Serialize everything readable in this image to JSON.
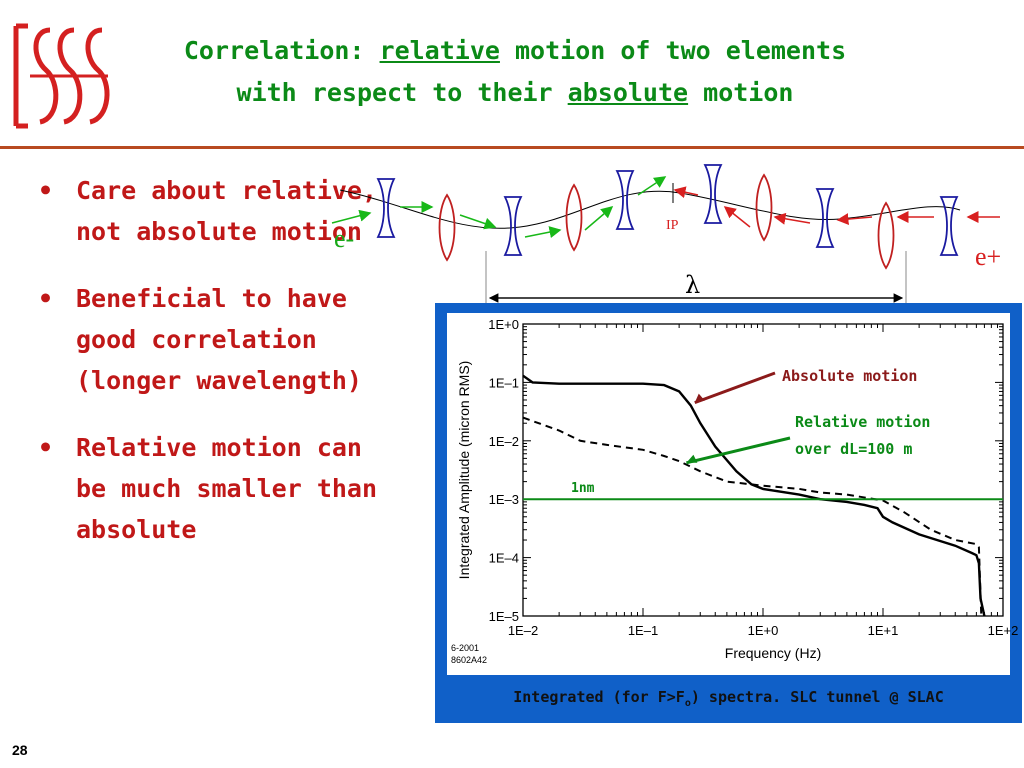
{
  "title": {
    "line1_pre": "Correlation: ",
    "line1_u": "relative",
    "line1_post": " motion of two elements",
    "line2_pre": "with respect to their ",
    "line2_u": "absolute",
    "line2_post": " motion"
  },
  "bullets": [
    "Care about relative, not absolute motion",
    "Beneficial to have good correlation (longer wavelength)",
    "Relative motion can be much smaller than absolute"
  ],
  "bullet_char": "•",
  "diagram": {
    "e_minus": "e-",
    "e_plus": "e+",
    "ip": "IP",
    "lambda": "λ"
  },
  "caption": {
    "pre": "Integrated (for F>F",
    "sub": "o",
    "post": ") spectra. SLC tunnel @ SLAC"
  },
  "page_number": "28",
  "colors": {
    "green": "#0b8a17",
    "red": "#c01818",
    "blue_frame": "#1060c8",
    "dark_red_arrow": "#8b1a1a",
    "lens_blue": "#1a1aa0"
  },
  "chart_data": {
    "type": "line",
    "title": "",
    "xlabel": "Frequency  (Hz)",
    "ylabel": "Integrated Amplitude  (micron RMS)",
    "xscale": "log",
    "yscale": "log",
    "xlim": [
      0.01,
      100
    ],
    "ylim": [
      1e-05,
      1
    ],
    "x_ticks": [
      "1E–2",
      "1E–1",
      "1E+0",
      "1E+1",
      "1E+2"
    ],
    "y_ticks": [
      "1E+0",
      "1E–1",
      "1E–2",
      "1E–3",
      "1E–4",
      "1E–5"
    ],
    "corner_note": [
      "6-2001",
      "8602A42"
    ],
    "series": [
      {
        "name": "Absolute motion",
        "style": "solid",
        "points": [
          [
            0.01,
            0.13
          ],
          [
            0.012,
            0.1
          ],
          [
            0.02,
            0.095
          ],
          [
            0.05,
            0.095
          ],
          [
            0.1,
            0.095
          ],
          [
            0.15,
            0.09
          ],
          [
            0.2,
            0.07
          ],
          [
            0.25,
            0.04
          ],
          [
            0.3,
            0.02
          ],
          [
            0.4,
            0.008
          ],
          [
            0.6,
            0.003
          ],
          [
            0.8,
            0.0018
          ],
          [
            1.0,
            0.0015
          ],
          [
            2.0,
            0.0012
          ],
          [
            3.0,
            0.001
          ],
          [
            5.0,
            0.0009
          ],
          [
            7.0,
            0.0008
          ],
          [
            9.0,
            0.0007
          ],
          [
            10.0,
            0.0005
          ],
          [
            12.0,
            0.0004
          ],
          [
            20.0,
            0.00025
          ],
          [
            40.0,
            0.00016
          ],
          [
            55.0,
            0.00012
          ],
          [
            60.0,
            0.00011
          ],
          [
            63.0,
            8e-05
          ],
          [
            65.0,
            2e-05
          ],
          [
            70.0,
            1e-05
          ]
        ]
      },
      {
        "name": "Relative motion over dL=100 m",
        "style": "dashed",
        "points": [
          [
            0.01,
            0.025
          ],
          [
            0.02,
            0.015
          ],
          [
            0.03,
            0.01
          ],
          [
            0.05,
            0.0085
          ],
          [
            0.1,
            0.007
          ],
          [
            0.15,
            0.0055
          ],
          [
            0.2,
            0.0045
          ],
          [
            0.3,
            0.003
          ],
          [
            0.5,
            0.002
          ],
          [
            1.0,
            0.0017
          ],
          [
            2.0,
            0.0015
          ],
          [
            3.0,
            0.0013
          ],
          [
            5.0,
            0.0012
          ],
          [
            10.0,
            0.00095
          ],
          [
            15.0,
            0.0006
          ],
          [
            25.0,
            0.0003
          ],
          [
            40.0,
            0.0002
          ],
          [
            60.0,
            0.00017
          ],
          [
            63.0,
            0.00015
          ],
          [
            66.0,
            1e-05
          ]
        ]
      },
      {
        "name": "1nm",
        "style": "reference",
        "points": [
          [
            0.01,
            0.001
          ],
          [
            100,
            0.001
          ]
        ]
      }
    ],
    "annotations": [
      "Absolute motion",
      "Relative motion",
      "over dL=100 m",
      "1nm"
    ]
  }
}
